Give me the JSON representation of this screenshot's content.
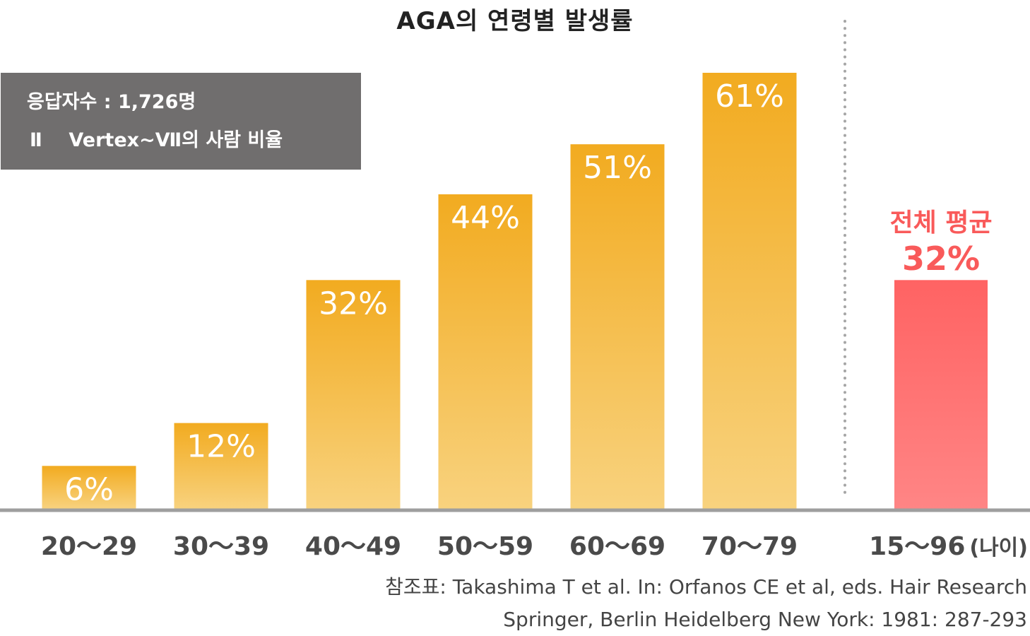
{
  "chart_data": {
    "type": "bar",
    "title": "AGA의 연령별 발생률",
    "categories": [
      "20～29",
      "30～39",
      "40～49",
      "50～59",
      "60～69",
      "70～79"
    ],
    "values": [
      6,
      12,
      32,
      44,
      51,
      61
    ],
    "value_labels": [
      "6%",
      "12%",
      "32%",
      "44%",
      "51%",
      "61%"
    ],
    "average": {
      "label": "전체 평균",
      "value": 32,
      "value_label": "32%",
      "category": "15～96",
      "unit_label": "(나이)"
    },
    "ylim": [
      0,
      61
    ],
    "grid": false,
    "colors": {
      "bar_top": "#f2ab20",
      "bar_bottom": "#f8d27e",
      "avg_top": "#ff6363",
      "avg_bottom": "#ff8585",
      "avg_text": "#f95a5a",
      "axis": "#9e9e9e"
    }
  },
  "info": {
    "respondents": "응답자수 : 1,726명",
    "criteria": "Ⅱ    Vertex~Ⅶ의 사람 비율"
  },
  "source": {
    "line1": "참조표: Takashima T et al. In: Orfanos CE et al, eds. Hair Research",
    "line2": "Springer, Berlin Heidelberg New York: 1981: 287-293"
  }
}
